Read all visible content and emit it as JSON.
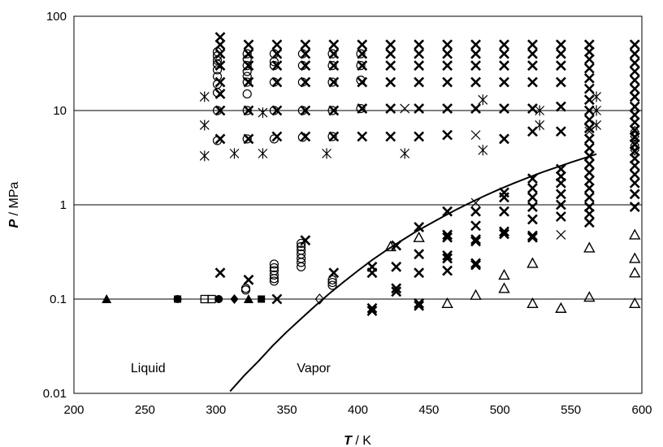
{
  "chart_data": {
    "type": "scatter",
    "title": "",
    "xlabel": {
      "symbol": "T",
      "unit": " / K"
    },
    "ylabel": {
      "symbol": "P",
      "unit": " / MPa"
    },
    "x_scale": "linear",
    "y_scale": "log",
    "xlim": [
      200,
      600
    ],
    "ylim": [
      0.01,
      100
    ],
    "x_ticks": [
      200,
      250,
      300,
      350,
      400,
      450,
      500,
      550,
      600
    ],
    "y_ticks": [
      0.01,
      0.1,
      1,
      10,
      100
    ],
    "x_tick_labels": [
      "200",
      "250",
      "300",
      "350",
      "400",
      "450",
      "500",
      "550",
      "600"
    ],
    "y_tick_labels": [
      "0.01",
      "0.1",
      "1",
      "10",
      "100"
    ],
    "grid": "horizontal lines at major y ticks",
    "legend": "none",
    "annotations": [
      {
        "text": "Liquid",
        "x": 240,
        "y": 0.0185
      },
      {
        "text": "Vapor",
        "x": 357,
        "y": 0.0185
      }
    ],
    "saturation_curve": [
      [
        310,
        0.0105
      ],
      [
        320,
        0.0155
      ],
      [
        330,
        0.022
      ],
      [
        340,
        0.032
      ],
      [
        350,
        0.045
      ],
      [
        360,
        0.062
      ],
      [
        370,
        0.085
      ],
      [
        380,
        0.115
      ],
      [
        390,
        0.152
      ],
      [
        400,
        0.2
      ],
      [
        410,
        0.26
      ],
      [
        420,
        0.33
      ],
      [
        430,
        0.41
      ],
      [
        440,
        0.51
      ],
      [
        450,
        0.62
      ],
      [
        460,
        0.75
      ],
      [
        470,
        0.9
      ],
      [
        480,
        1.07
      ],
      [
        490,
        1.26
      ],
      [
        500,
        1.47
      ],
      [
        510,
        1.7
      ],
      [
        520,
        1.95
      ],
      [
        530,
        2.22
      ],
      [
        540,
        2.5
      ],
      [
        550,
        2.82
      ],
      [
        560,
        3.15
      ],
      [
        568,
        3.45
      ]
    ],
    "series": [
      {
        "marker": "cross-bold",
        "points": [
          [
            303,
            60
          ],
          [
            303,
            50
          ],
          [
            303,
            40
          ],
          [
            303,
            30
          ],
          [
            303,
            20
          ],
          [
            303,
            15
          ],
          [
            303,
            10
          ],
          [
            303,
            5
          ],
          [
            323,
            50
          ],
          [
            323,
            40
          ],
          [
            323,
            30
          ],
          [
            323,
            20
          ],
          [
            323,
            10
          ],
          [
            323,
            5
          ],
          [
            343,
            50
          ],
          [
            343,
            40
          ],
          [
            343,
            30
          ],
          [
            343,
            20
          ],
          [
            343,
            10
          ],
          [
            343,
            5.3
          ],
          [
            363,
            50
          ],
          [
            363,
            40
          ],
          [
            363,
            30
          ],
          [
            363,
            20
          ],
          [
            363,
            10
          ],
          [
            363,
            5.3
          ],
          [
            383,
            50
          ],
          [
            383,
            40
          ],
          [
            383,
            30
          ],
          [
            383,
            20
          ],
          [
            383,
            10
          ],
          [
            383,
            5.3
          ],
          [
            403,
            50
          ],
          [
            403,
            40
          ],
          [
            403,
            30
          ],
          [
            403,
            20
          ],
          [
            403,
            10.5
          ],
          [
            403,
            5.3
          ],
          [
            423,
            50
          ],
          [
            423,
            40
          ],
          [
            423,
            30
          ],
          [
            423,
            20
          ],
          [
            423,
            10.5
          ],
          [
            423,
            5.3
          ],
          [
            443,
            50
          ],
          [
            443,
            40
          ],
          [
            443,
            30
          ],
          [
            443,
            20
          ],
          [
            443,
            10.5
          ],
          [
            443,
            5.3
          ],
          [
            463,
            50
          ],
          [
            463,
            40
          ],
          [
            463,
            30
          ],
          [
            463,
            20
          ],
          [
            463,
            10.5
          ],
          [
            463,
            5.5
          ],
          [
            483,
            50
          ],
          [
            483,
            40
          ],
          [
            483,
            30
          ],
          [
            483,
            20
          ],
          [
            483,
            10.5
          ],
          [
            503,
            50
          ],
          [
            503,
            40
          ],
          [
            503,
            30
          ],
          [
            503,
            20
          ],
          [
            503,
            10.5
          ],
          [
            503,
            5
          ],
          [
            523,
            50
          ],
          [
            523,
            40
          ],
          [
            523,
            30
          ],
          [
            523,
            20
          ],
          [
            523,
            10.5
          ],
          [
            523,
            6
          ],
          [
            543,
            50
          ],
          [
            543,
            40
          ],
          [
            543,
            30
          ],
          [
            543,
            20
          ],
          [
            543,
            11
          ],
          [
            543,
            6
          ],
          [
            563,
            50
          ],
          [
            563,
            42
          ],
          [
            563,
            35
          ],
          [
            563,
            28
          ],
          [
            563,
            22
          ],
          [
            563,
            17
          ],
          [
            563,
            13
          ],
          [
            563,
            10
          ],
          [
            563,
            8
          ],
          [
            563,
            6.5
          ],
          [
            563,
            5
          ],
          [
            563,
            4
          ],
          [
            563,
            3.3
          ],
          [
            563,
            2.7
          ],
          [
            563,
            2.2
          ],
          [
            563,
            1.8
          ],
          [
            563,
            1.5
          ],
          [
            563,
            1.2
          ],
          [
            563,
            0.95
          ],
          [
            563,
            0.8
          ],
          [
            563,
            0.65
          ],
          [
            595,
            50
          ],
          [
            595,
            40
          ],
          [
            595,
            32
          ],
          [
            595,
            26
          ],
          [
            595,
            21
          ],
          [
            595,
            17
          ],
          [
            595,
            14
          ],
          [
            595,
            11
          ],
          [
            595,
            9
          ],
          [
            595,
            7.5
          ],
          [
            595,
            6.2
          ],
          [
            595,
            5.2
          ],
          [
            595,
            4.4
          ],
          [
            595,
            3.7
          ],
          [
            595,
            3.1
          ],
          [
            595,
            2.6
          ],
          [
            595,
            2.1
          ],
          [
            595,
            1.7
          ],
          [
            595,
            1.3
          ],
          [
            595,
            0.95
          ],
          [
            303,
            0.19
          ],
          [
            323,
            0.16
          ],
          [
            343,
            0.1
          ],
          [
            363,
            0.42
          ],
          [
            383,
            0.19
          ],
          [
            410,
            0.22
          ],
          [
            410,
            0.19
          ],
          [
            410,
            0.08
          ],
          [
            410,
            0.075
          ],
          [
            427,
            0.37
          ],
          [
            427,
            0.22
          ],
          [
            427,
            0.13
          ],
          [
            427,
            0.12
          ],
          [
            443,
            0.58
          ],
          [
            443,
            0.3
          ],
          [
            443,
            0.19
          ],
          [
            443,
            0.09
          ],
          [
            443,
            0.085
          ],
          [
            463,
            0.85
          ],
          [
            463,
            0.48
          ],
          [
            463,
            0.45
          ],
          [
            463,
            0.29
          ],
          [
            463,
            0.27
          ],
          [
            463,
            0.2
          ],
          [
            483,
            0.85
          ],
          [
            483,
            0.6
          ],
          [
            483,
            0.43
          ],
          [
            483,
            0.41
          ],
          [
            483,
            0.24
          ],
          [
            483,
            0.23
          ],
          [
            503,
            1.35
          ],
          [
            503,
            1.2
          ],
          [
            503,
            0.85
          ],
          [
            503,
            0.52
          ],
          [
            503,
            0.49
          ],
          [
            523,
            1.9
          ],
          [
            523,
            1.5
          ],
          [
            523,
            1.2
          ],
          [
            523,
            0.95
          ],
          [
            523,
            0.7
          ],
          [
            523,
            0.47
          ],
          [
            523,
            0.45
          ],
          [
            543,
            2.4
          ],
          [
            543,
            2
          ],
          [
            543,
            1.7
          ],
          [
            543,
            1.3
          ],
          [
            543,
            1
          ],
          [
            543,
            0.75
          ]
        ]
      },
      {
        "marker": "cross-thin",
        "points": [
          [
            433,
            10.5
          ],
          [
            483,
            5.5
          ],
          [
            483,
            1.05
          ],
          [
            543,
            0.48
          ],
          [
            563,
            6
          ]
        ]
      },
      {
        "marker": "asterisk",
        "points": [
          [
            292,
            14
          ],
          [
            292,
            7
          ],
          [
            292,
            3.3
          ],
          [
            313,
            3.5
          ],
          [
            333,
            9.5
          ],
          [
            333,
            3.5
          ],
          [
            378,
            3.5
          ],
          [
            433,
            3.5
          ],
          [
            488,
            13
          ],
          [
            488,
            3.8
          ],
          [
            528,
            7
          ],
          [
            528,
            10
          ],
          [
            568,
            14
          ],
          [
            568,
            10
          ],
          [
            568,
            7
          ]
        ]
      },
      {
        "marker": "circle",
        "points": [
          [
            301,
            42
          ],
          [
            301,
            38
          ],
          [
            301,
            34
          ],
          [
            301,
            31
          ],
          [
            301,
            27
          ],
          [
            301,
            23
          ],
          [
            301,
            19
          ],
          [
            301,
            15.5
          ],
          [
            301,
            10
          ],
          [
            301,
            4.8
          ],
          [
            322,
            40
          ],
          [
            322,
            35
          ],
          [
            322,
            30
          ],
          [
            322,
            26
          ],
          [
            322,
            23
          ],
          [
            322,
            20
          ],
          [
            322,
            15
          ],
          [
            322,
            10
          ],
          [
            322,
            5
          ],
          [
            341,
            40
          ],
          [
            341,
            33
          ],
          [
            341,
            30
          ],
          [
            341,
            20
          ],
          [
            341,
            10
          ],
          [
            341,
            5
          ],
          [
            361,
            40
          ],
          [
            361,
            30
          ],
          [
            361,
            20
          ],
          [
            361,
            10
          ],
          [
            361,
            5.2
          ],
          [
            382,
            40
          ],
          [
            382,
            30
          ],
          [
            382,
            20
          ],
          [
            382,
            10
          ],
          [
            382,
            5.3
          ],
          [
            402,
            40
          ],
          [
            402,
            30
          ],
          [
            402,
            21
          ],
          [
            402,
            10.5
          ],
          [
            321,
            0.125
          ],
          [
            321,
            0.13
          ],
          [
            341,
            0.155
          ],
          [
            341,
            0.165
          ],
          [
            341,
            0.18
          ],
          [
            341,
            0.2
          ],
          [
            341,
            0.215
          ],
          [
            341,
            0.235
          ],
          [
            360,
            0.22
          ],
          [
            360,
            0.245
          ],
          [
            360,
            0.27
          ],
          [
            360,
            0.3
          ],
          [
            360,
            0.33
          ],
          [
            360,
            0.36
          ],
          [
            360,
            0.39
          ],
          [
            382,
            0.14
          ],
          [
            382,
            0.15
          ],
          [
            382,
            0.16
          ]
        ]
      },
      {
        "marker": "triangle",
        "points": [
          [
            423,
            0.36
          ],
          [
            443,
            0.45
          ],
          [
            463,
            0.09
          ],
          [
            483,
            0.11
          ],
          [
            503,
            0.18
          ],
          [
            503,
            0.13
          ],
          [
            523,
            0.24
          ],
          [
            523,
            0.09
          ],
          [
            543,
            0.08
          ],
          [
            563,
            0.35
          ],
          [
            563,
            0.105
          ],
          [
            595,
            0.48
          ],
          [
            595,
            0.27
          ],
          [
            595,
            0.19
          ],
          [
            595,
            0.09
          ]
        ]
      },
      {
        "marker": "triangle-filled",
        "points": [
          [
            223,
            0.1
          ],
          [
            323,
            0.1
          ]
        ]
      },
      {
        "marker": "circle-filled",
        "points": [
          [
            273,
            0.1
          ],
          [
            302,
            0.1
          ]
        ]
      },
      {
        "marker": "square",
        "points": [
          [
            292,
            0.1
          ],
          [
            297,
            0.1
          ]
        ]
      },
      {
        "marker": "square-filled",
        "points": [
          [
            273,
            0.1
          ],
          [
            332,
            0.1
          ]
        ]
      },
      {
        "marker": "diamond-filled",
        "points": [
          [
            313,
            0.1
          ]
        ]
      },
      {
        "marker": "diamond",
        "points": [
          [
            373,
            0.1
          ],
          [
            595,
            3.8
          ],
          [
            595,
            4.3
          ],
          [
            595,
            4.8
          ],
          [
            595,
            5.3
          ],
          [
            595,
            6
          ]
        ]
      }
    ]
  }
}
